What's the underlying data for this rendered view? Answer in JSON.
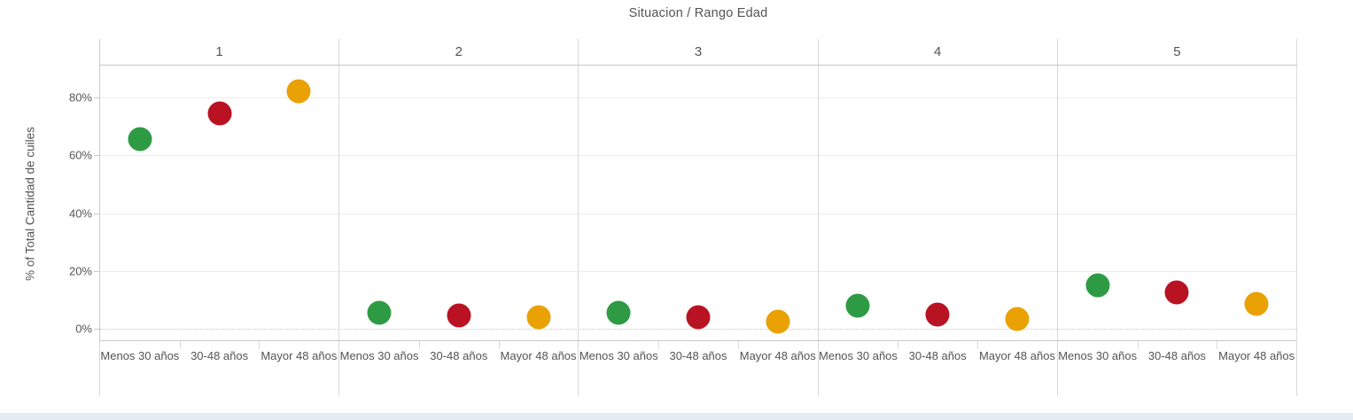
{
  "title": "Situacion  /  Rango Edad",
  "y_axis": {
    "label": "% of Total Cantidad de cuiles",
    "tick_labels": [
      "0%",
      "20%",
      "40%",
      "60%",
      "80%"
    ]
  },
  "facet_header_labels": [
    "1",
    "2",
    "3",
    "4",
    "5"
  ],
  "x_axis": {
    "category_labels": [
      "Menos 30 años",
      "30-48 años",
      "Mayor 48 años"
    ]
  },
  "colors": {
    "dot_menos_30": "#2E9B44",
    "dot_30_48": "#B91223",
    "dot_mayor_48": "#E9A104",
    "text": "#545454",
    "gridline": "#ECECEC",
    "separator": "#D8D8D8",
    "bottom_band": "#E4EBF2"
  },
  "chart_data": {
    "type": "scatter",
    "title": "Situacion / Rango Edad",
    "facet_field": "Situacion",
    "x_field": "Rango Edad",
    "ylabel": "% of Total Cantidad de cuiles",
    "categories": [
      "Menos 30 años",
      "30-48 años",
      "Mayor 48 años"
    ],
    "category_colors": [
      "#2E9B44",
      "#B91223",
      "#E9A104"
    ],
    "yticks": [
      0,
      20,
      40,
      60,
      80
    ],
    "ylim": [
      -4.6,
      90.7
    ],
    "grid": true,
    "zero_line_style": "dotted",
    "facets": [
      {
        "label": "1",
        "values": [
          65.5,
          74.5,
          82
        ]
      },
      {
        "label": "2",
        "values": [
          5.5,
          4.5,
          4
        ]
      },
      {
        "label": "3",
        "values": [
          5.5,
          4,
          2.5
        ]
      },
      {
        "label": "4",
        "values": [
          8,
          5,
          3.5
        ]
      },
      {
        "label": "5",
        "values": [
          15,
          12.5,
          8.5
        ]
      }
    ]
  }
}
